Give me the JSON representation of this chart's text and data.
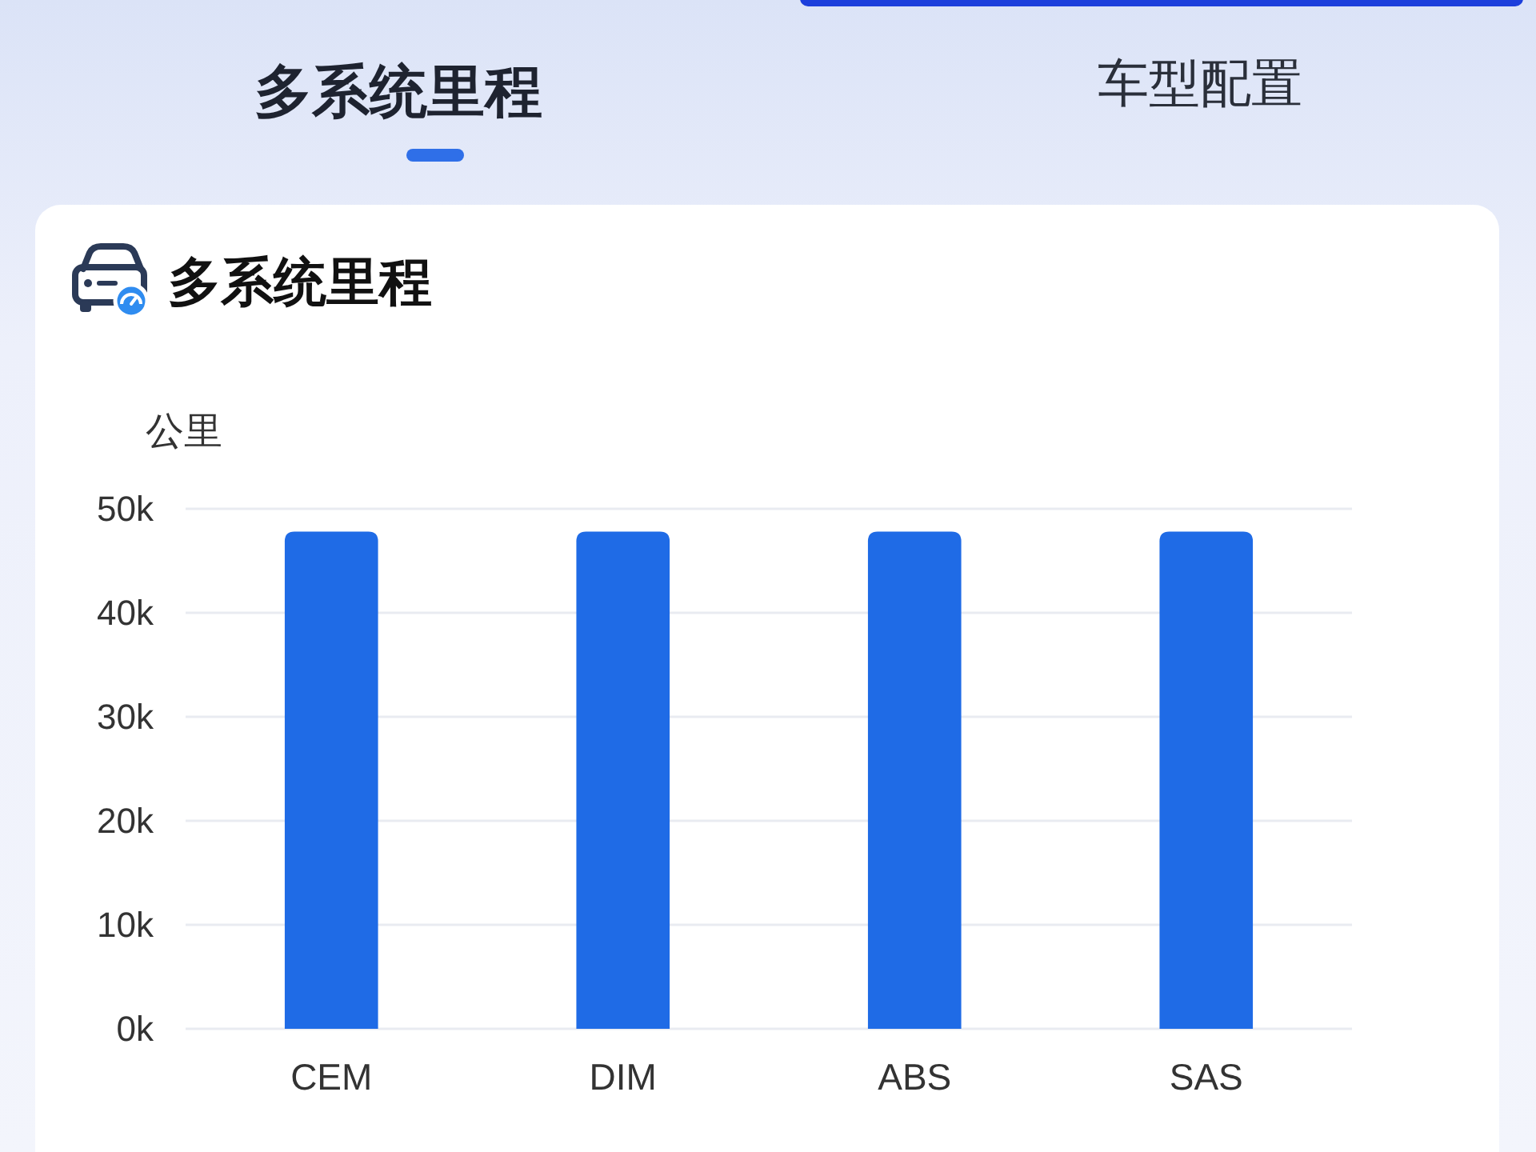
{
  "chart_data": {
    "type": "bar",
    "title": "多系统里程",
    "ylabel": "公里",
    "annotations": [
      "多系统里程",
      "车型配置"
    ],
    "categories": [
      "CEM",
      "DIM",
      "ABS",
      "SAS"
    ],
    "values": [
      47800,
      47800,
      47800,
      47800
    ],
    "color": "#1f6be6",
    "ylim": [
      0,
      50000
    ],
    "yticks": [
      {
        "value": 0,
        "label": "0k"
      },
      {
        "value": 10000,
        "label": "10k"
      },
      {
        "value": 20000,
        "label": "20k"
      },
      {
        "value": 30000,
        "label": "30k"
      },
      {
        "value": 40000,
        "label": "40k"
      },
      {
        "value": 50000,
        "label": "50k"
      }
    ],
    "grid": "y"
  }
}
